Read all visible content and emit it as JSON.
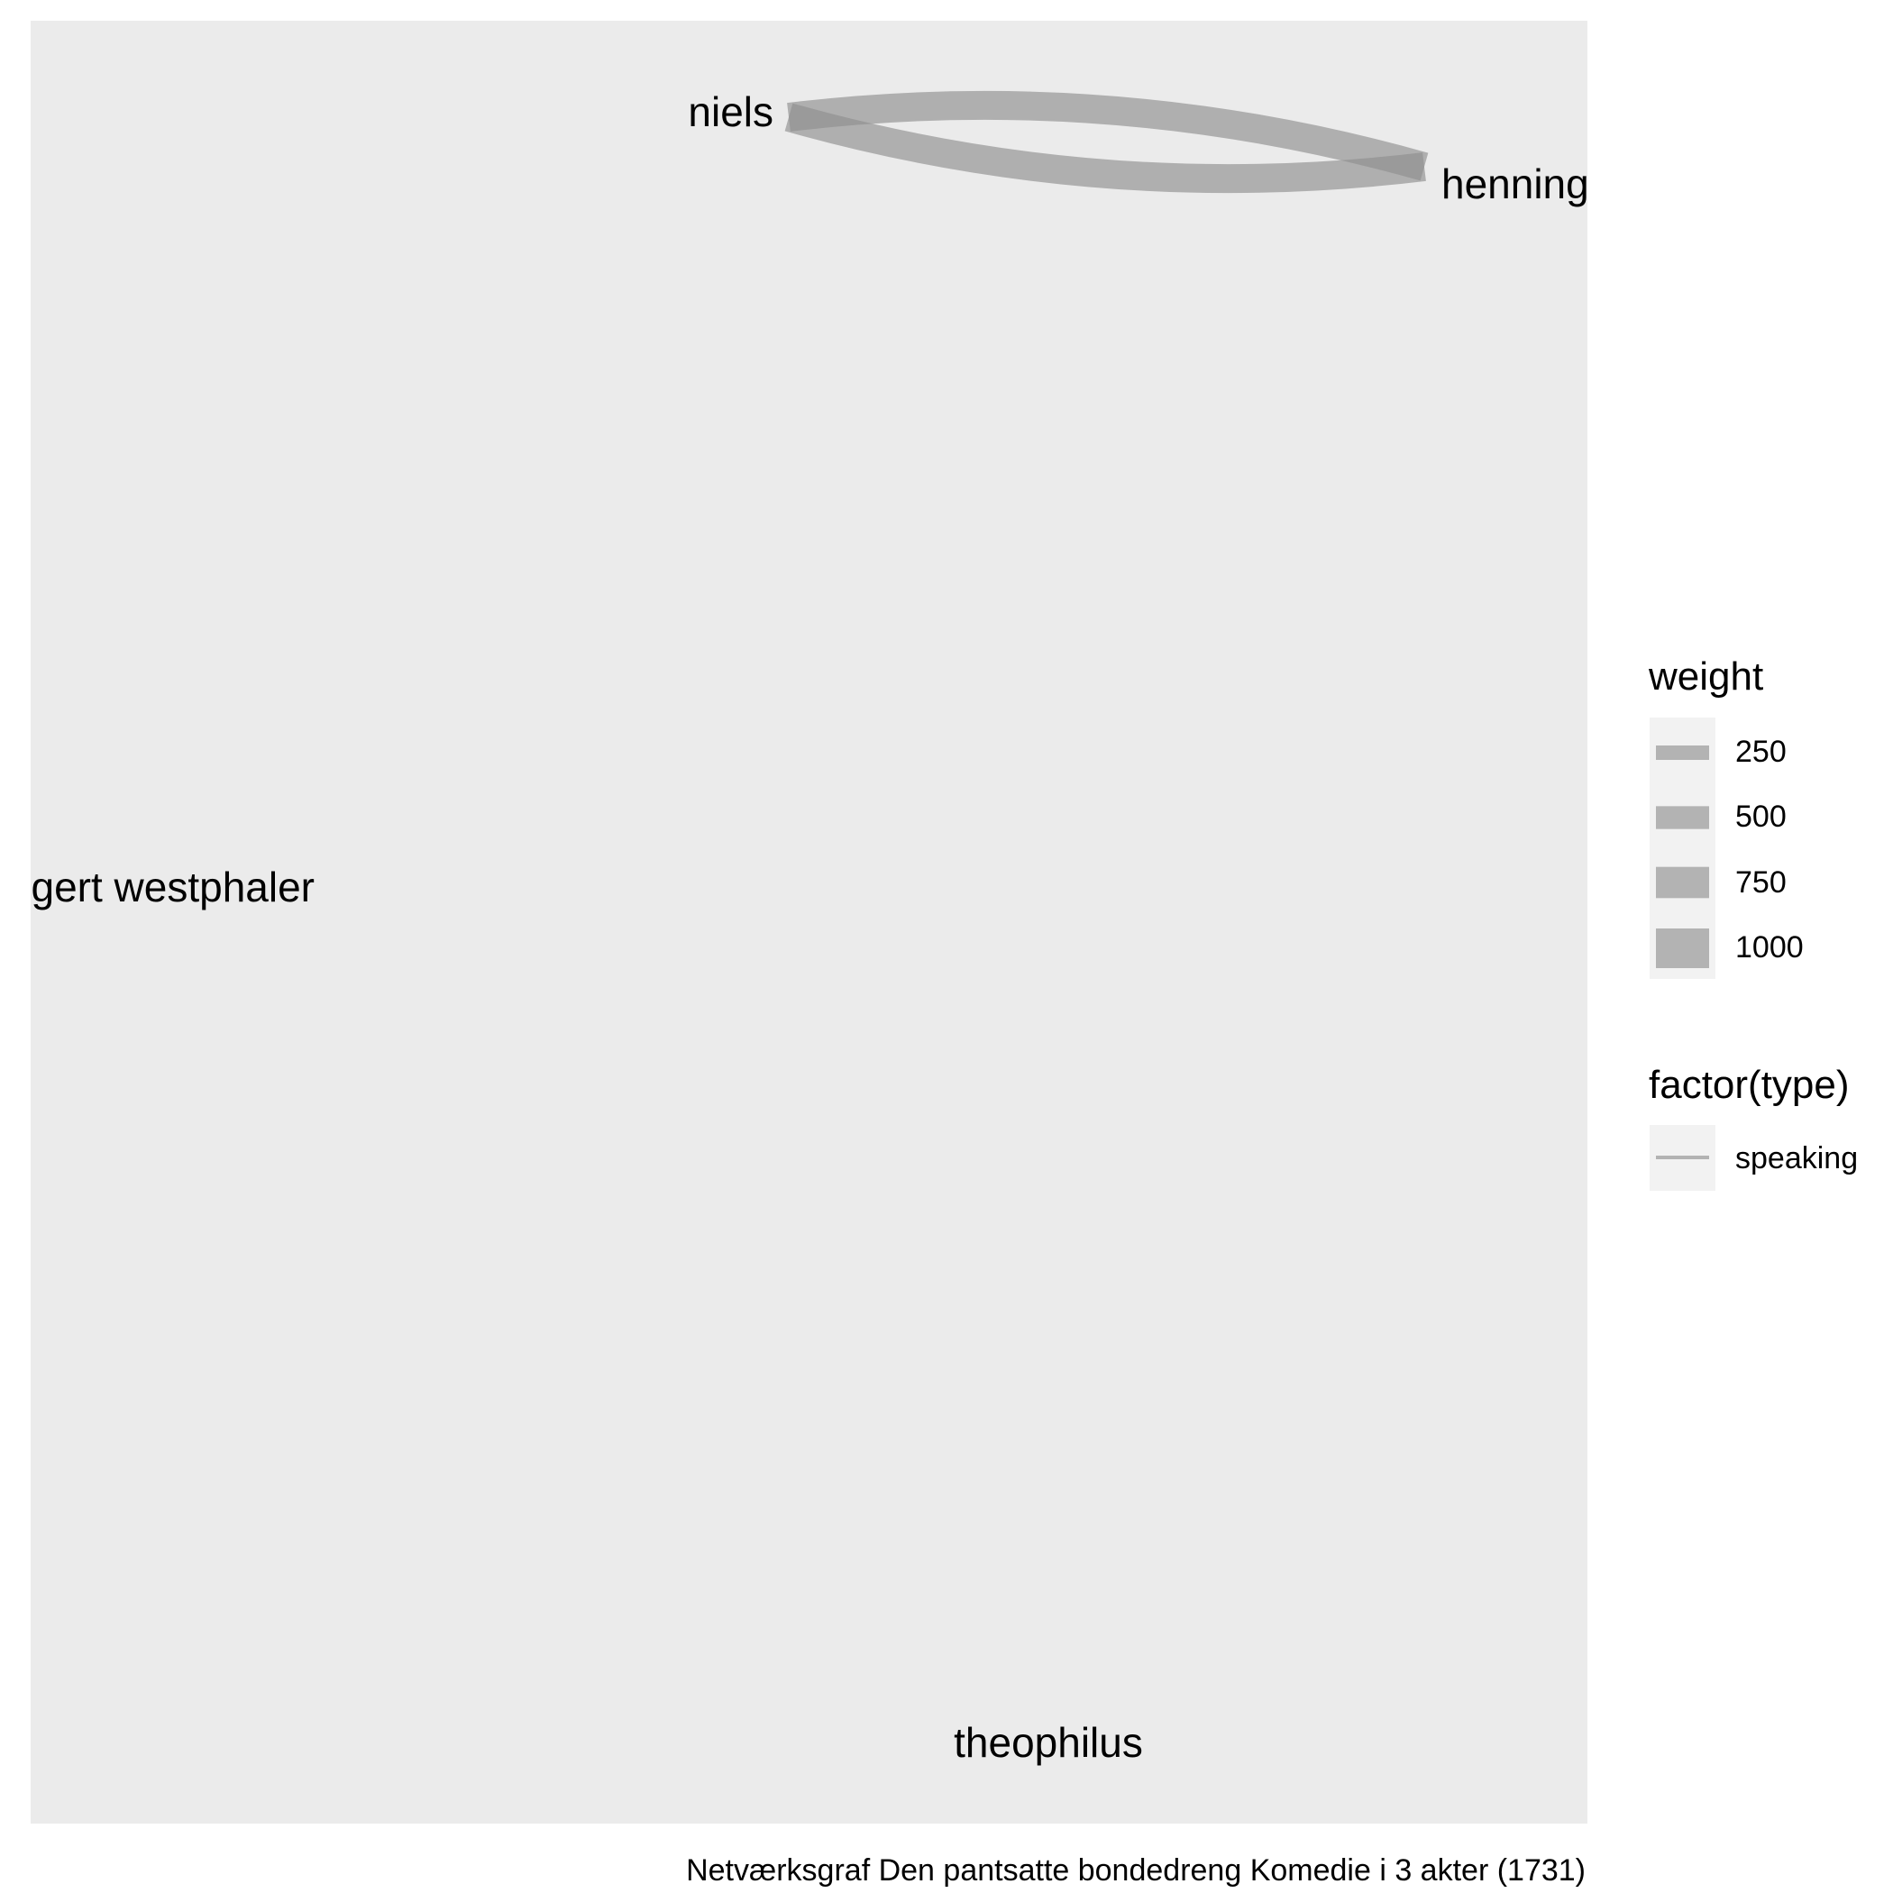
{
  "caption": "Netværksgraf Den pantsatte bondedreng Komedie i 3 akter (1731)",
  "colors": {
    "panel": "#ebebeb",
    "edge": "#8f8f8f",
    "legend_key_bg": "#f2f2f2",
    "legend_key_mark": "#b3b3b3"
  },
  "nodes": [
    {
      "id": "niels",
      "label": "niels"
    },
    {
      "id": "henning",
      "label": "henning"
    },
    {
      "id": "gert",
      "label": "gert westphaler"
    },
    {
      "id": "theophilus",
      "label": "theophilus"
    }
  ],
  "edges": [
    {
      "from": "niels",
      "to": "henning",
      "type": "speaking",
      "weight": 1000
    },
    {
      "from": "henning",
      "to": "niels",
      "type": "speaking",
      "weight": 1000
    }
  ],
  "legend": {
    "weight": {
      "title": "weight",
      "items": [
        {
          "label": "250",
          "value": 250
        },
        {
          "label": "500",
          "value": 500
        },
        {
          "label": "750",
          "value": 750
        },
        {
          "label": "1000",
          "value": 1000
        }
      ]
    },
    "type": {
      "title": "factor(type)",
      "items": [
        {
          "label": "speaking"
        }
      ]
    }
  }
}
